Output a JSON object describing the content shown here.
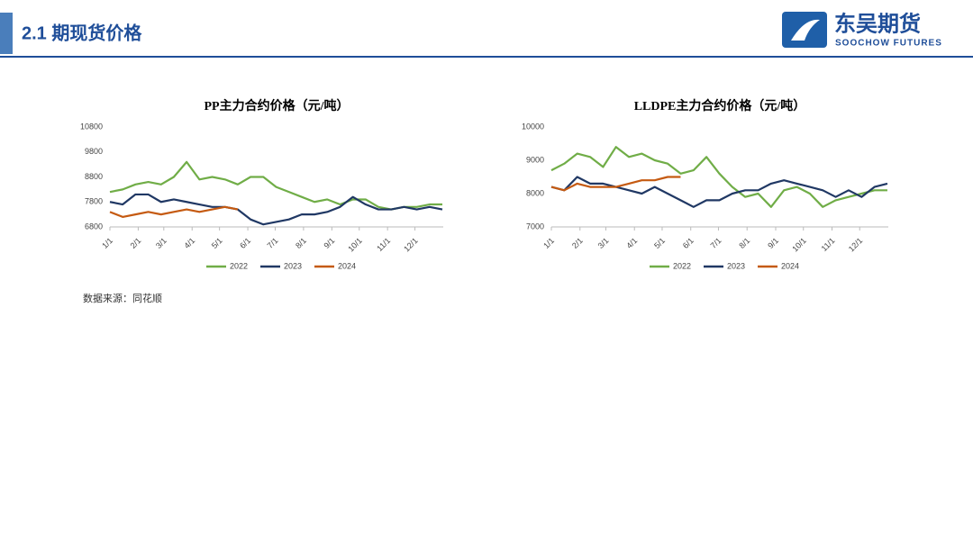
{
  "header": {
    "title": "2.1 期现货价格",
    "logo_cn": "东吴期货",
    "logo_en": "SOOCHOW FUTURES"
  },
  "source": "数据来源：同花顺",
  "chart_data": [
    {
      "type": "line",
      "title": "PP主力合约价格（元/吨）",
      "x": [
        1,
        15,
        29,
        43,
        57,
        71,
        85,
        99,
        113,
        127,
        141,
        155,
        169,
        183,
        197,
        211,
        225,
        239,
        253,
        267,
        281,
        295,
        309,
        323,
        337,
        351,
        365
      ],
      "xlim": [
        1,
        366
      ],
      "xticks": [
        {
          "value": 1,
          "label": "1/1"
        },
        {
          "value": 32,
          "label": "2/1"
        },
        {
          "value": 60,
          "label": "3/1"
        },
        {
          "value": 91,
          "label": "4/1"
        },
        {
          "value": 121,
          "label": "5/1"
        },
        {
          "value": 152,
          "label": "6/1"
        },
        {
          "value": 182,
          "label": "7/1"
        },
        {
          "value": 213,
          "label": "8/1"
        },
        {
          "value": 244,
          "label": "9/1"
        },
        {
          "value": 274,
          "label": "10/1"
        },
        {
          "value": 305,
          "label": "11/1"
        },
        {
          "value": 335,
          "label": "12/1"
        }
      ],
      "ylim": [
        6800,
        10800
      ],
      "yticks": [
        6800,
        7800,
        8800,
        9800,
        10800
      ],
      "legend": "bottom",
      "series": [
        {
          "name": "2022",
          "color": "#70ad47",
          "values": [
            8200,
            8300,
            8500,
            8600,
            8500,
            8800,
            9400,
            8700,
            8800,
            8700,
            8500,
            8800,
            8800,
            8400,
            8200,
            8000,
            7800,
            7900,
            7700,
            7900,
            7900,
            7600,
            7500,
            7600,
            7600,
            7700,
            7700
          ]
        },
        {
          "name": "2023",
          "color": "#203864",
          "values": [
            7800,
            7700,
            8100,
            8100,
            7800,
            7900,
            7800,
            7700,
            7600,
            7600,
            7500,
            7100,
            6900,
            7000,
            7100,
            7300,
            7300,
            7400,
            7600,
            8000,
            7700,
            7500,
            7500,
            7600,
            7500,
            7600,
            7500
          ]
        },
        {
          "name": "2024",
          "color": "#c55a11",
          "values": [
            7400,
            7200,
            7300,
            7400,
            7300,
            7400,
            7500,
            7400,
            7500,
            7600,
            7500,
            null,
            null,
            null,
            null,
            null,
            null,
            null,
            null,
            null,
            null,
            null,
            null,
            null,
            null,
            null,
            null
          ]
        }
      ]
    },
    {
      "type": "line",
      "title": "LLDPE主力合约价格（元/吨）",
      "x": [
        1,
        15,
        29,
        43,
        57,
        71,
        85,
        99,
        113,
        127,
        141,
        155,
        169,
        183,
        197,
        211,
        225,
        239,
        253,
        267,
        281,
        295,
        309,
        323,
        337,
        351,
        365
      ],
      "xlim": [
        1,
        366
      ],
      "xticks": [
        {
          "value": 1,
          "label": "1/1"
        },
        {
          "value": 32,
          "label": "2/1"
        },
        {
          "value": 60,
          "label": "3/1"
        },
        {
          "value": 91,
          "label": "4/1"
        },
        {
          "value": 121,
          "label": "5/1"
        },
        {
          "value": 152,
          "label": "6/1"
        },
        {
          "value": 182,
          "label": "7/1"
        },
        {
          "value": 213,
          "label": "8/1"
        },
        {
          "value": 244,
          "label": "9/1"
        },
        {
          "value": 274,
          "label": "10/1"
        },
        {
          "value": 305,
          "label": "11/1"
        },
        {
          "value": 335,
          "label": "12/1"
        }
      ],
      "ylim": [
        7000,
        10000
      ],
      "yticks": [
        7000,
        8000,
        9000,
        10000
      ],
      "legend": "bottom",
      "series": [
        {
          "name": "2022",
          "color": "#70ad47",
          "values": [
            8700,
            8900,
            9200,
            9100,
            8800,
            9400,
            9100,
            9200,
            9000,
            8900,
            8600,
            8700,
            9100,
            8600,
            8200,
            7900,
            8000,
            7600,
            8100,
            8200,
            8000,
            7600,
            7800,
            7900,
            8000,
            8100,
            8100
          ]
        },
        {
          "name": "2023",
          "color": "#203864",
          "values": [
            8200,
            8100,
            8500,
            8300,
            8300,
            8200,
            8100,
            8000,
            8200,
            8000,
            7800,
            7600,
            7800,
            7800,
            8000,
            8100,
            8100,
            8300,
            8400,
            8300,
            8200,
            8100,
            7900,
            8100,
            7900,
            8200,
            8300
          ]
        },
        {
          "name": "2024",
          "color": "#c55a11",
          "values": [
            8200,
            8100,
            8300,
            8200,
            8200,
            8200,
            8300,
            8400,
            8400,
            8500,
            8500,
            null,
            null,
            null,
            null,
            null,
            null,
            null,
            null,
            null,
            null,
            null,
            null,
            null,
            null,
            null,
            null
          ]
        }
      ]
    }
  ]
}
